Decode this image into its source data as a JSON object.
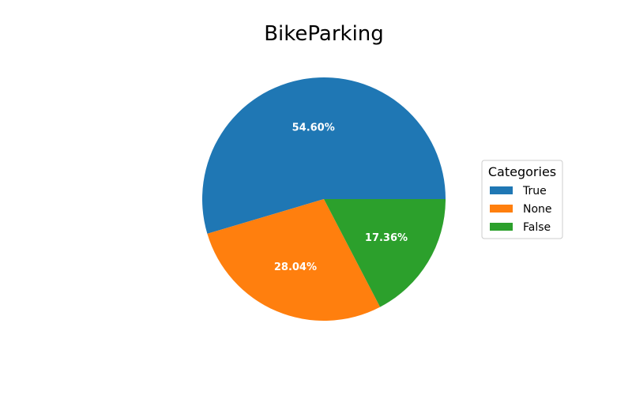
{
  "chart_data": {
    "type": "pie",
    "title": "BikeParking",
    "categories": [
      "True",
      "None",
      "False"
    ],
    "values": [
      54.6,
      28.04,
      17.36
    ],
    "value_labels": [
      "54.60%",
      "28.04%",
      "17.36%"
    ],
    "colors": [
      "#1f77b4",
      "#ff7f0e",
      "#2ca02c"
    ],
    "legend": {
      "title": "Categories",
      "placement": "right",
      "entries": [
        "True",
        "None",
        "False"
      ]
    }
  }
}
